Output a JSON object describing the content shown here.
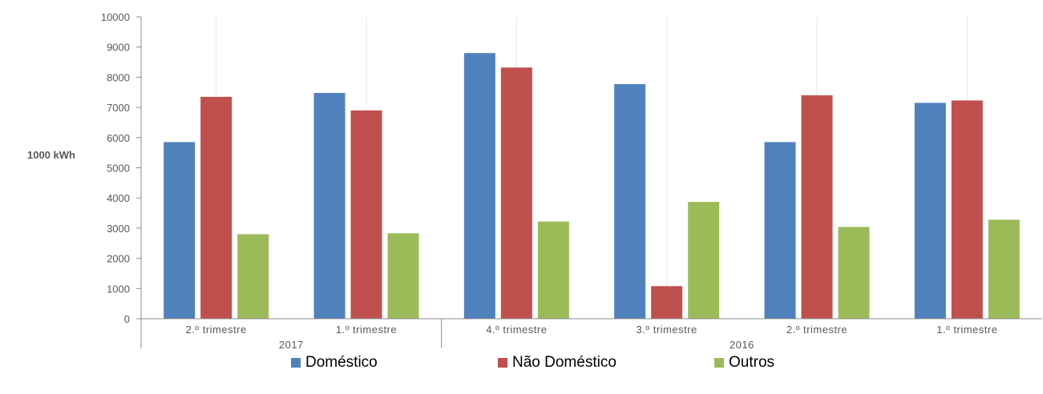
{
  "chart_data": {
    "type": "bar",
    "ylabel": "1000 kWh",
    "ylim": [
      0,
      10000
    ],
    "yticks": [
      0,
      1000,
      2000,
      3000,
      4000,
      5000,
      6000,
      7000,
      8000,
      9000,
      10000
    ],
    "categories": [
      "2.º trimestre",
      "1.º trimestre",
      "4.º trimestre",
      "3.º trimestre",
      "2.º trimestre",
      "1.º trimestre"
    ],
    "groups": [
      {
        "label": "2017",
        "span": 2
      },
      {
        "label": "2016",
        "span": 4
      }
    ],
    "series": [
      {
        "name": "Doméstico",
        "color": "#4f81bd",
        "values": [
          5850,
          7480,
          8800,
          7770,
          5850,
          7150
        ]
      },
      {
        "name": "Não Doméstico",
        "color": "#c0504d",
        "values": [
          7350,
          6900,
          8320,
          1080,
          7400,
          7230
        ]
      },
      {
        "name": "Outros",
        "color": "#9bbb59",
        "values": [
          2800,
          2830,
          3220,
          3870,
          3040,
          3280
        ]
      }
    ],
    "grid": "vertical",
    "legend": "bottom"
  }
}
